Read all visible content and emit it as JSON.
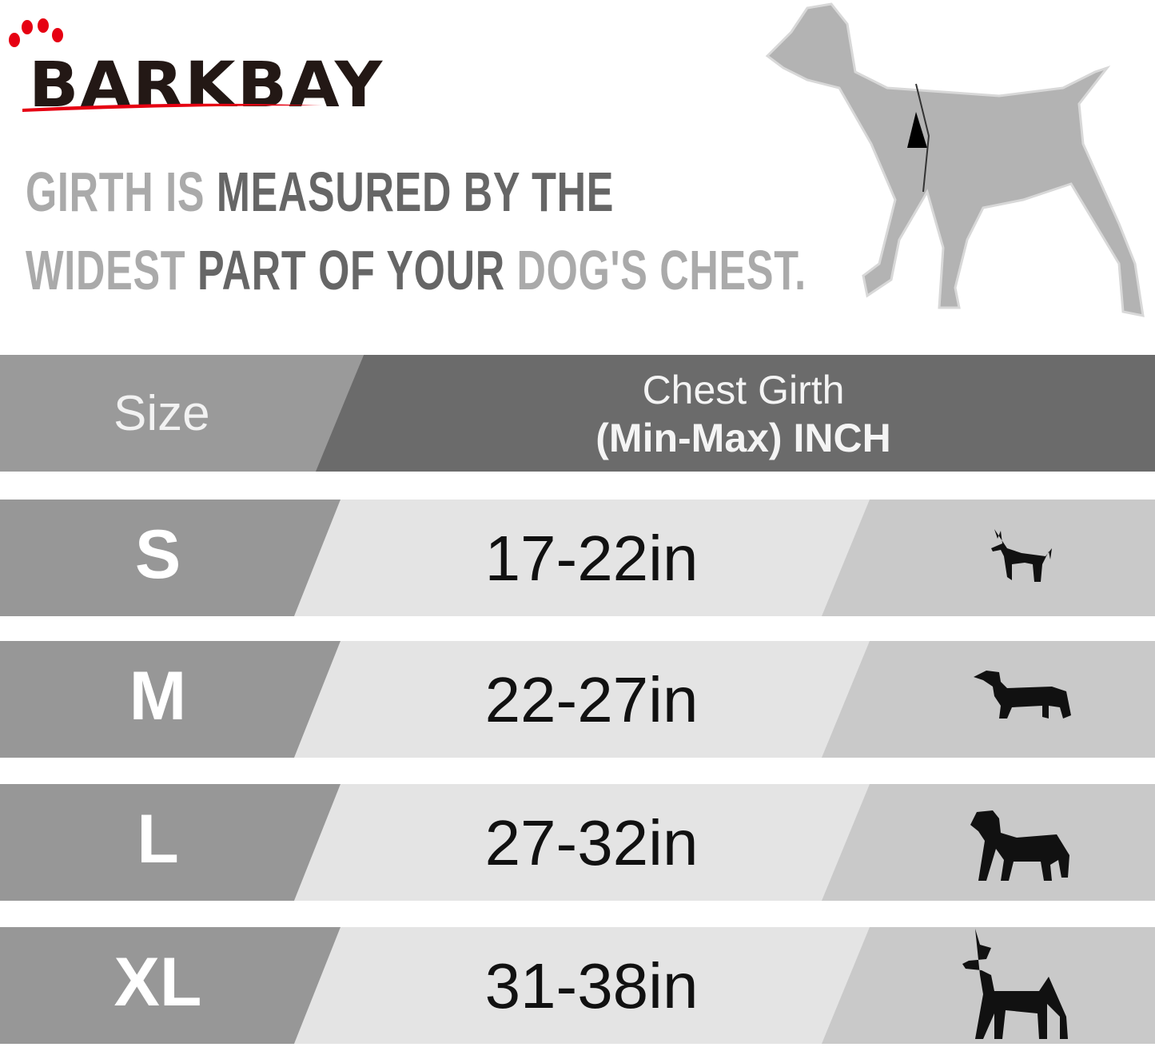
{
  "brand": {
    "logo_text": "BARKBAY",
    "accent": "#e60012"
  },
  "headline": {
    "line1": [
      {
        "t": "GIRTH IS ",
        "tone": "light"
      },
      {
        "t": "MEASURED BY THE",
        "tone": "dark"
      }
    ],
    "line2": [
      {
        "t": "WIDEST ",
        "tone": "light"
      },
      {
        "t": "PART OF YOUR ",
        "tone": "dark"
      },
      {
        "t": "DOG'S CHEST.",
        "tone": "light"
      }
    ]
  },
  "table": {
    "header": {
      "size": "Size",
      "girth_line1": "Chest Girth",
      "girth_line2": "(Min-Max)  INCH"
    },
    "rows": [
      {
        "size": "S",
        "range": "17-22in",
        "icon": "chihuahua-icon"
      },
      {
        "size": "M",
        "range": "22-27in",
        "icon": "dachshund-icon"
      },
      {
        "size": "L",
        "range": "27-32in",
        "icon": "labrador-icon"
      },
      {
        "size": "XL",
        "range": "31-38in",
        "icon": "great-dane-icon"
      }
    ]
  },
  "colors": {
    "header_left": "#9a9a9a",
    "header_right": "#6b6b6b",
    "row_left": "#979797",
    "row_mid": "#e4e4e4",
    "row_right": "#c9c9c9"
  }
}
